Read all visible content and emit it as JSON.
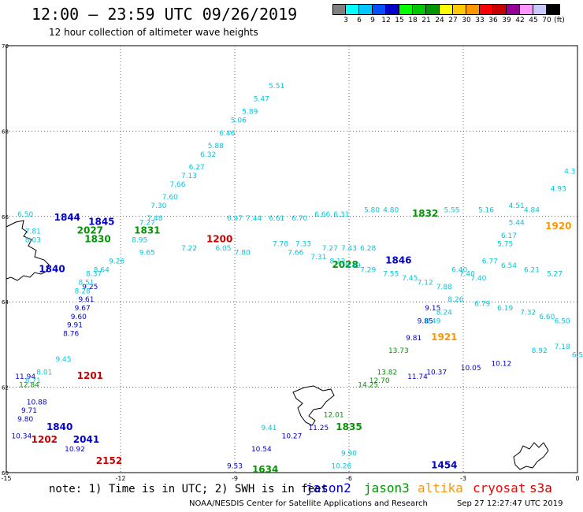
{
  "header": {
    "title": "12:00 – 23:59 UTC 09/26/2019",
    "subtitle": "12 hour collection of altimeter wave heights"
  },
  "legend": {
    "unit": "(ft)",
    "ticks": [
      "3",
      "6",
      "9",
      "12",
      "15",
      "18",
      "21",
      "24",
      "27",
      "30",
      "33",
      "36",
      "39",
      "42",
      "45",
      "70"
    ],
    "colors": [
      "#808080",
      "#00ffff",
      "#00c8ff",
      "#0050ff",
      "#0000c8",
      "#00ff00",
      "#00c800",
      "#009600",
      "#ffff00",
      "#ffc800",
      "#ff9600",
      "#ff0000",
      "#c80000",
      "#960096",
      "#ff96ff",
      "#c8c8ff",
      "#000000"
    ]
  },
  "axes": {
    "x_ticks": [
      "-15",
      "-12",
      "-9",
      "-6",
      "-3",
      "0"
    ],
    "y_ticks": [
      "70",
      "68",
      "66",
      "64",
      "62",
      "60"
    ],
    "lon_range": [
      -15,
      0
    ],
    "lat_range": [
      60,
      70
    ]
  },
  "footer": {
    "note": "note: 1) Time is in UTC; 2) SWH is in feet",
    "satellites": [
      {
        "name": "jason2",
        "color": "#0000d0"
      },
      {
        "name": "jason3",
        "color": "#009600"
      },
      {
        "name": "altika",
        "color": "#ff9600"
      },
      {
        "name": "cryosat",
        "color": "#ff0000"
      },
      {
        "name": "s3a",
        "color": "#c80000"
      }
    ],
    "credit": "NOAA/NESDIS Center for Satellite Applications and Research",
    "timestamp": "Sep 27 12:27:47 UTC 2019"
  },
  "chart_data": {
    "type": "scatter",
    "x_unit": "degrees longitude",
    "y_unit": "degrees latitude",
    "series": [
      {
        "name": "jason2",
        "color": "#0000d0",
        "labels": [
          {
            "lon": -13.4,
            "lat": 65.9,
            "text": "1844"
          },
          {
            "lon": -12.5,
            "lat": 65.8,
            "text": "1845"
          },
          {
            "lon": -4.7,
            "lat": 64.9,
            "text": "1846"
          },
          {
            "lon": -13.8,
            "lat": 64.7,
            "text": "1840"
          },
          {
            "lon": -12.9,
            "lat": 60.7,
            "text": "2041"
          },
          {
            "lon": -13.6,
            "lat": 61.0,
            "text": "1840"
          },
          {
            "lon": -3.5,
            "lat": 60.1,
            "text": "1454"
          }
        ],
        "points": [
          {
            "lon": -12.8,
            "lat": 64.3,
            "value": "9.25"
          },
          {
            "lon": -12.9,
            "lat": 64.0,
            "value": "9.61"
          },
          {
            "lon": -13.0,
            "lat": 63.8,
            "value": "9.67"
          },
          {
            "lon": -13.1,
            "lat": 63.6,
            "value": "9.60"
          },
          {
            "lon": -13.2,
            "lat": 63.4,
            "value": "9.91"
          },
          {
            "lon": -13.3,
            "lat": 63.2,
            "value": "8.76"
          },
          {
            "lon": -14.5,
            "lat": 62.2,
            "value": "11.94"
          },
          {
            "lon": -14.2,
            "lat": 61.6,
            "value": "10.88"
          },
          {
            "lon": -14.4,
            "lat": 61.4,
            "value": "9.71"
          },
          {
            "lon": -14.5,
            "lat": 61.2,
            "value": "9.80"
          },
          {
            "lon": -14.6,
            "lat": 60.8,
            "value": "10.34"
          },
          {
            "lon": -13.2,
            "lat": 60.5,
            "value": "10.92"
          },
          {
            "lon": -9.0,
            "lat": 60.1,
            "value": "9.53"
          },
          {
            "lon": -8.3,
            "lat": 60.5,
            "value": "10.54"
          },
          {
            "lon": -7.5,
            "lat": 60.8,
            "value": "10.27"
          },
          {
            "lon": -6.8,
            "lat": 61.0,
            "value": "11.25"
          },
          {
            "lon": -3.7,
            "lat": 62.3,
            "value": "10.37"
          },
          {
            "lon": -2.8,
            "lat": 62.4,
            "value": "10.05"
          },
          {
            "lon": -2.0,
            "lat": 62.5,
            "value": "10.12"
          },
          {
            "lon": -4.2,
            "lat": 62.2,
            "value": "11.74"
          },
          {
            "lon": -4.3,
            "lat": 63.1,
            "value": "9.81"
          },
          {
            "lon": -4.0,
            "lat": 63.5,
            "value": "9.85"
          },
          {
            "lon": -3.8,
            "lat": 63.8,
            "value": "9.15"
          }
        ]
      },
      {
        "name": "jason3",
        "color": "#009600",
        "labels": [
          {
            "lon": -12.8,
            "lat": 65.6,
            "text": "2027"
          },
          {
            "lon": -11.3,
            "lat": 65.6,
            "text": "1831"
          },
          {
            "lon": -12.6,
            "lat": 65.4,
            "text": "1830"
          },
          {
            "lon": -6.1,
            "lat": 64.8,
            "text": "2028"
          },
          {
            "lon": -4.0,
            "lat": 66.0,
            "text": "1832"
          },
          {
            "lon": -6.0,
            "lat": 61.0,
            "text": "1835"
          },
          {
            "lon": -8.2,
            "lat": 60.0,
            "text": "1634"
          }
        ],
        "points": [
          {
            "lon": -4.7,
            "lat": 62.8,
            "value": "13.73"
          },
          {
            "lon": -5.0,
            "lat": 62.3,
            "value": "13.82"
          },
          {
            "lon": -5.5,
            "lat": 62.0,
            "value": "14.25"
          },
          {
            "lon": -5.2,
            "lat": 62.1,
            "value": "12.70"
          },
          {
            "lon": -6.4,
            "lat": 61.3,
            "value": "12.01"
          },
          {
            "lon": -14.4,
            "lat": 62.0,
            "value": "12.84"
          }
        ]
      },
      {
        "name": "altika",
        "color": "#ff9600",
        "labels": [
          {
            "lon": -0.5,
            "lat": 65.7,
            "text": "1920"
          },
          {
            "lon": -3.5,
            "lat": 63.1,
            "text": "1921"
          }
        ],
        "points": []
      },
      {
        "name": "cryosat",
        "color": "#ff0000",
        "labels": [],
        "points": []
      },
      {
        "name": "s3a",
        "color": "#c80000",
        "labels": [
          {
            "lon": -9.4,
            "lat": 65.4,
            "text": "1200"
          },
          {
            "lon": -12.8,
            "lat": 62.2,
            "text": "1201"
          },
          {
            "lon": -14.0,
            "lat": 60.7,
            "text": "1202"
          },
          {
            "lon": -12.3,
            "lat": 60.2,
            "text": "2152"
          }
        ],
        "points": []
      },
      {
        "name": "cyan-track",
        "color": "#00c8e0",
        "labels": [],
        "points": [
          {
            "lon": -7.9,
            "lat": 69.0,
            "value": "5.51"
          },
          {
            "lon": -8.3,
            "lat": 68.7,
            "value": "5.47"
          },
          {
            "lon": -8.6,
            "lat": 68.4,
            "value": "5.89"
          },
          {
            "lon": -8.9,
            "lat": 68.2,
            "value": "5.06"
          },
          {
            "lon": -9.2,
            "lat": 67.9,
            "value": "6.46"
          },
          {
            "lon": -9.5,
            "lat": 67.6,
            "value": "5.88"
          },
          {
            "lon": -9.7,
            "lat": 67.4,
            "value": "6.32"
          },
          {
            "lon": -10.0,
            "lat": 67.1,
            "value": "6.27"
          },
          {
            "lon": -10.2,
            "lat": 66.9,
            "value": "7.13"
          },
          {
            "lon": -10.5,
            "lat": 66.7,
            "value": "7.66"
          },
          {
            "lon": -10.7,
            "lat": 66.4,
            "value": "7.60"
          },
          {
            "lon": -11.0,
            "lat": 66.2,
            "value": "7.30"
          },
          {
            "lon": -11.1,
            "lat": 65.9,
            "value": "7.48"
          },
          {
            "lon": -12.1,
            "lat": 64.9,
            "value": "9.26"
          },
          {
            "lon": -12.5,
            "lat": 64.7,
            "value": "8.64"
          },
          {
            "lon": -12.7,
            "lat": 64.6,
            "value": "8.37"
          },
          {
            "lon": -12.9,
            "lat": 64.4,
            "value": "8.51"
          },
          {
            "lon": -13.0,
            "lat": 64.2,
            "value": "8.28"
          },
          {
            "lon": -14.5,
            "lat": 66.0,
            "value": "6.50"
          },
          {
            "lon": -7.4,
            "lat": 65.1,
            "value": "7.66"
          },
          {
            "lon": -6.8,
            "lat": 65.0,
            "value": "7.31"
          },
          {
            "lon": -6.3,
            "lat": 64.9,
            "value": "8.12"
          },
          {
            "lon": -5.9,
            "lat": 64.8,
            "value": "8.49"
          },
          {
            "lon": -5.5,
            "lat": 64.7,
            "value": "7.29"
          },
          {
            "lon": -4.9,
            "lat": 64.6,
            "value": "7.55"
          },
          {
            "lon": -4.4,
            "lat": 64.5,
            "value": "7.45"
          },
          {
            "lon": -4.0,
            "lat": 64.4,
            "value": "7.12"
          },
          {
            "lon": -3.5,
            "lat": 64.3,
            "value": "7.88"
          },
          {
            "lon": -2.6,
            "lat": 64.5,
            "value": "7.40"
          },
          {
            "lon": -2.3,
            "lat": 64.9,
            "value": "6.77"
          },
          {
            "lon": -1.9,
            "lat": 65.3,
            "value": "5.75"
          },
          {
            "lon": -1.8,
            "lat": 65.5,
            "value": "6.17"
          },
          {
            "lon": -1.6,
            "lat": 65.8,
            "value": "5.44"
          },
          {
            "lon": -1.2,
            "lat": 66.1,
            "value": "4.84"
          },
          {
            "lon": -0.5,
            "lat": 66.6,
            "value": "4.93"
          },
          {
            "lon": -0.2,
            "lat": 67.0,
            "value": "4.3"
          },
          {
            "lon": -1.8,
            "lat": 64.8,
            "value": "6.54"
          },
          {
            "lon": -1.2,
            "lat": 64.7,
            "value": "6.21"
          },
          {
            "lon": -0.6,
            "lat": 64.6,
            "value": "5.27"
          },
          {
            "lon": -2.5,
            "lat": 63.9,
            "value": "6.79"
          },
          {
            "lon": -1.9,
            "lat": 63.8,
            "value": "6.19"
          },
          {
            "lon": -1.3,
            "lat": 63.7,
            "value": "7.32"
          },
          {
            "lon": -0.8,
            "lat": 63.6,
            "value": "6.60"
          },
          {
            "lon": -0.4,
            "lat": 63.5,
            "value": "6.50"
          },
          {
            "lon": -3.2,
            "lat": 64.0,
            "value": "8.26"
          },
          {
            "lon": -3.5,
            "lat": 63.7,
            "value": "8.24"
          },
          {
            "lon": -3.8,
            "lat": 63.5,
            "value": "8.49"
          },
          {
            "lon": -3.1,
            "lat": 64.7,
            "value": "6.40"
          },
          {
            "lon": -2.9,
            "lat": 64.6,
            "value": "7.40"
          },
          {
            "lon": -5.5,
            "lat": 65.2,
            "value": "6.28"
          },
          {
            "lon": -6.0,
            "lat": 65.2,
            "value": "7.43"
          },
          {
            "lon": -6.5,
            "lat": 65.2,
            "value": "7.27"
          },
          {
            "lon": -7.2,
            "lat": 65.3,
            "value": "7.33"
          },
          {
            "lon": -7.8,
            "lat": 65.3,
            "value": "7.78"
          },
          {
            "lon": -10.2,
            "lat": 65.2,
            "value": "7.22"
          },
          {
            "lon": -8.8,
            "lat": 65.1,
            "value": "7.80"
          },
          {
            "lon": -7.9,
            "lat": 65.9,
            "value": "6.61"
          },
          {
            "lon": -7.3,
            "lat": 65.9,
            "value": "6.70"
          },
          {
            "lon": -6.7,
            "lat": 66.0,
            "value": "6.66"
          },
          {
            "lon": -6.2,
            "lat": 66.0,
            "value": "6.31"
          },
          {
            "lon": -5.4,
            "lat": 66.1,
            "value": "5.80"
          },
          {
            "lon": -4.9,
            "lat": 66.1,
            "value": "4.80"
          },
          {
            "lon": -3.3,
            "lat": 66.1,
            "value": "5.55"
          },
          {
            "lon": -2.4,
            "lat": 66.1,
            "value": "5.16"
          },
          {
            "lon": -1.6,
            "lat": 66.2,
            "value": "4.51"
          },
          {
            "lon": -14.3,
            "lat": 65.6,
            "value": "7.81"
          },
          {
            "lon": -14.3,
            "lat": 65.4,
            "value": "8.03"
          },
          {
            "lon": -11.3,
            "lat": 65.8,
            "value": "7.27"
          },
          {
            "lon": -9.0,
            "lat": 65.9,
            "value": "6.97"
          },
          {
            "lon": -8.5,
            "lat": 65.9,
            "value": "7.44"
          },
          {
            "lon": -9.3,
            "lat": 65.2,
            "value": "6.05"
          },
          {
            "lon": -11.5,
            "lat": 65.4,
            "value": "8.95"
          },
          {
            "lon": -8.1,
            "lat": 61.0,
            "value": "9.41"
          },
          {
            "lon": -6.0,
            "lat": 60.4,
            "value": "9.90"
          },
          {
            "lon": -6.2,
            "lat": 60.1,
            "value": "10.26"
          },
          {
            "lon": -13.5,
            "lat": 62.6,
            "value": "9.45"
          },
          {
            "lon": -14.0,
            "lat": 62.3,
            "value": "8.01"
          },
          {
            "lon": -14.3,
            "lat": 62.1,
            "value": "8.71"
          },
          {
            "lon": -11.3,
            "lat": 65.1,
            "value": "9.65"
          },
          {
            "lon": -1.0,
            "lat": 62.8,
            "value": "8.92"
          },
          {
            "lon": -0.4,
            "lat": 62.9,
            "value": "7.18"
          },
          {
            "lon": 0.0,
            "lat": 62.7,
            "value": "6.5"
          }
        ]
      }
    ]
  }
}
